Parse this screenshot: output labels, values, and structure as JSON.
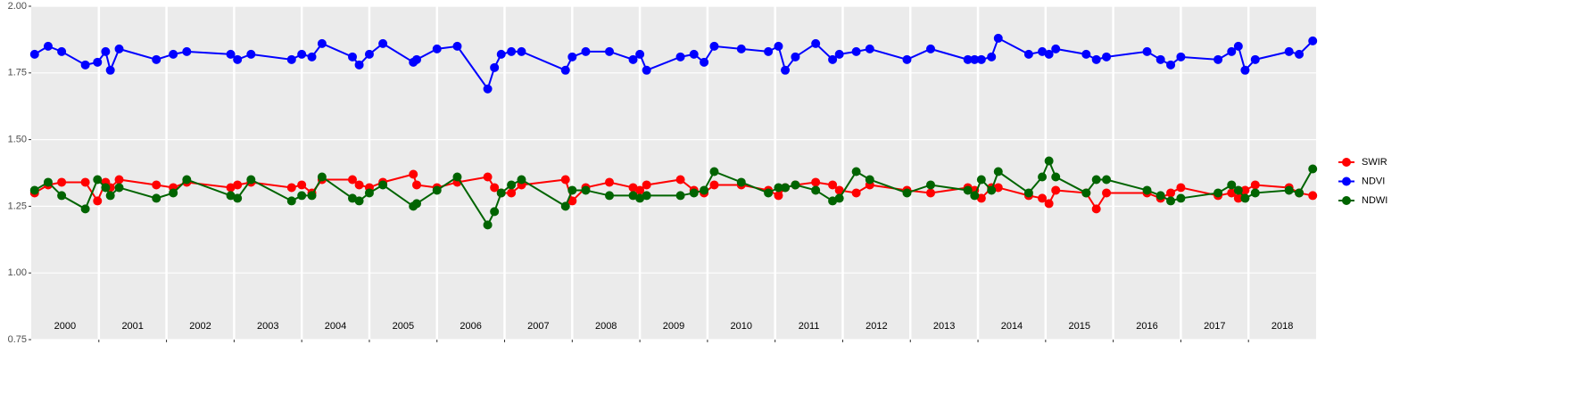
{
  "chart_data": {
    "type": "line",
    "x": [
      2000.05,
      2000.25,
      2000.45,
      2000.8,
      2000.98,
      2001.1,
      2001.17,
      2001.3,
      2001.85,
      2002.1,
      2002.3,
      2002.95,
      2003.05,
      2003.25,
      2003.85,
      2004.0,
      2004.15,
      2004.3,
      2004.75,
      2004.85,
      2005.0,
      2005.2,
      2005.65,
      2005.7,
      2006.0,
      2006.3,
      2006.75,
      2006.85,
      2006.95,
      2007.1,
      2007.25,
      2007.9,
      2008.0,
      2008.2,
      2008.55,
      2008.9,
      2009.0,
      2009.1,
      2009.6,
      2009.8,
      2009.95,
      2010.1,
      2010.5,
      2010.9,
      2011.05,
      2011.15,
      2011.3,
      2011.6,
      2011.85,
      2011.95,
      2012.2,
      2012.4,
      2012.95,
      2013.3,
      2013.85,
      2013.95,
      2014.05,
      2014.2,
      2014.3,
      2014.75,
      2014.95,
      2015.05,
      2015.15,
      2015.6,
      2015.75,
      2015.9,
      2016.5,
      2016.7,
      2016.85,
      2017.0,
      2017.55,
      2017.75,
      2017.85,
      2017.95,
      2018.1,
      2018.6,
      2018.75,
      2018.95
    ],
    "series": [
      {
        "name": "SWIR",
        "color": "#ff0000",
        "values": [
          1.3,
          1.33,
          1.34,
          1.34,
          1.27,
          1.34,
          1.32,
          1.35,
          1.33,
          1.32,
          1.34,
          1.32,
          1.33,
          1.34,
          1.32,
          1.33,
          1.3,
          1.35,
          1.35,
          1.33,
          1.32,
          1.34,
          1.37,
          1.33,
          1.32,
          1.34,
          1.36,
          1.32,
          1.3,
          1.3,
          1.33,
          1.35,
          1.27,
          1.32,
          1.34,
          1.32,
          1.31,
          1.33,
          1.35,
          1.31,
          1.3,
          1.33,
          1.33,
          1.31,
          1.29,
          1.32,
          1.33,
          1.34,
          1.33,
          1.31,
          1.3,
          1.33,
          1.31,
          1.3,
          1.32,
          1.31,
          1.28,
          1.32,
          1.32,
          1.29,
          1.28,
          1.26,
          1.31,
          1.3,
          1.24,
          1.3,
          1.3,
          1.28,
          1.3,
          1.32,
          1.29,
          1.3,
          1.28,
          1.31,
          1.33,
          1.32,
          1.3,
          1.29
        ]
      },
      {
        "name": "NDVI",
        "color": "#0000ff",
        "values": [
          1.82,
          1.85,
          1.83,
          1.78,
          1.79,
          1.83,
          1.76,
          1.84,
          1.8,
          1.82,
          1.83,
          1.82,
          1.8,
          1.82,
          1.8,
          1.82,
          1.81,
          1.86,
          1.81,
          1.78,
          1.82,
          1.86,
          1.79,
          1.8,
          1.84,
          1.85,
          1.69,
          1.77,
          1.82,
          1.83,
          1.83,
          1.76,
          1.81,
          1.83,
          1.83,
          1.8,
          1.82,
          1.76,
          1.81,
          1.82,
          1.79,
          1.85,
          1.84,
          1.83,
          1.85,
          1.76,
          1.81,
          1.86,
          1.8,
          1.82,
          1.83,
          1.84,
          1.8,
          1.84,
          1.8,
          1.8,
          1.8,
          1.81,
          1.88,
          1.82,
          1.83,
          1.82,
          1.84,
          1.82,
          1.8,
          1.81,
          1.83,
          1.8,
          1.78,
          1.81,
          1.8,
          1.83,
          1.85,
          1.76,
          1.8,
          1.83,
          1.82,
          1.87
        ]
      },
      {
        "name": "NDWI",
        "color": "#006400",
        "values": [
          1.31,
          1.34,
          1.29,
          1.24,
          1.35,
          1.32,
          1.29,
          1.32,
          1.28,
          1.3,
          1.35,
          1.29,
          1.28,
          1.35,
          1.27,
          1.29,
          1.29,
          1.36,
          1.28,
          1.27,
          1.3,
          1.33,
          1.25,
          1.26,
          1.31,
          1.36,
          1.18,
          1.23,
          1.3,
          1.33,
          1.35,
          1.25,
          1.31,
          1.31,
          1.29,
          1.29,
          1.28,
          1.29,
          1.29,
          1.3,
          1.31,
          1.38,
          1.34,
          1.3,
          1.32,
          1.32,
          1.33,
          1.31,
          1.27,
          1.28,
          1.38,
          1.35,
          1.3,
          1.33,
          1.31,
          1.29,
          1.35,
          1.31,
          1.38,
          1.3,
          1.36,
          1.42,
          1.36,
          1.3,
          1.35,
          1.35,
          1.31,
          1.29,
          1.27,
          1.28,
          1.3,
          1.33,
          1.31,
          1.28,
          1.3,
          1.31,
          1.3,
          1.39
        ]
      }
    ],
    "xlim": [
      2000,
      2019
    ],
    "xticks": [
      2001,
      2002,
      2003,
      2004,
      2005,
      2006,
      2007,
      2008,
      2009,
      2010,
      2011,
      2012,
      2013,
      2014,
      2015,
      2016,
      2017,
      2018
    ],
    "year_labels": [
      {
        "value": 2000.5,
        "label": "2000"
      },
      {
        "value": 2001.5,
        "label": "2001"
      },
      {
        "value": 2002.5,
        "label": "2002"
      },
      {
        "value": 2003.5,
        "label": "2003"
      },
      {
        "value": 2004.5,
        "label": "2004"
      },
      {
        "value": 2005.5,
        "label": "2005"
      },
      {
        "value": 2006.5,
        "label": "2006"
      },
      {
        "value": 2007.5,
        "label": "2007"
      },
      {
        "value": 2008.5,
        "label": "2008"
      },
      {
        "value": 2009.5,
        "label": "2009"
      },
      {
        "value": 2010.5,
        "label": "2010"
      },
      {
        "value": 2011.5,
        "label": "2011"
      },
      {
        "value": 2012.5,
        "label": "2012"
      },
      {
        "value": 2013.5,
        "label": "2013"
      },
      {
        "value": 2014.5,
        "label": "2014"
      },
      {
        "value": 2015.5,
        "label": "2015"
      },
      {
        "value": 2016.5,
        "label": "2016"
      },
      {
        "value": 2017.5,
        "label": "2017"
      },
      {
        "value": 2018.5,
        "label": "2018"
      }
    ],
    "ylim": [
      0.75,
      2.0
    ],
    "yticks": [
      {
        "value": 0.75,
        "label": "0.75"
      },
      {
        "value": 1.0,
        "label": "1.00"
      },
      {
        "value": 1.25,
        "label": "1.25"
      },
      {
        "value": 1.5,
        "label": "1.50"
      },
      {
        "value": 1.75,
        "label": "1.75"
      },
      {
        "value": 2.0,
        "label": "2.00"
      }
    ],
    "grid": true,
    "legend": "right"
  }
}
